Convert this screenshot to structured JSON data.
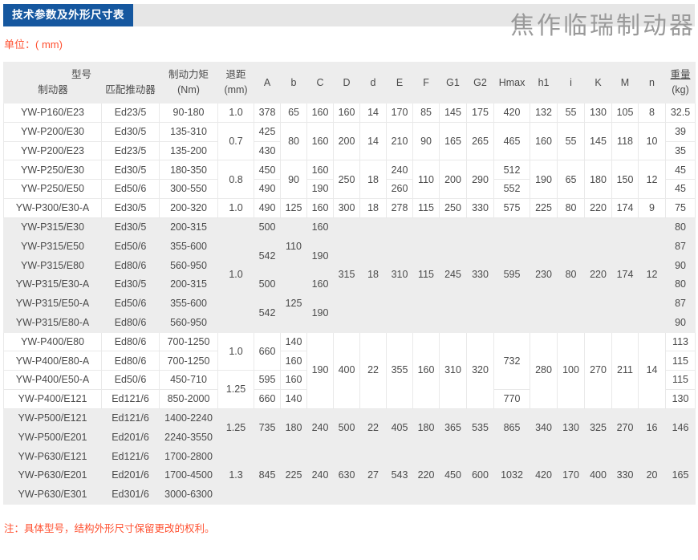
{
  "page": {
    "title": "技术参数及外形尺寸表",
    "watermark": "焦作临瑞制动器",
    "unit_label": "单位：( mm)",
    "note": "注：具体型号，结构外形尺寸保留更改的权利。"
  },
  "colors": {
    "title_bg": "#15579f",
    "strip_gray": "#e6e6e6",
    "accent_red": "#ff5030",
    "stripe_bg": "#ededed",
    "border_color": "#e9e9e9",
    "text_color": "#4a4a4a",
    "watermark_color": "#9a9a9a"
  },
  "table": {
    "header": {
      "model_group": "型号",
      "brake": "制动器",
      "thruster": "匹配推动器",
      "torque_l1": "制动力矩",
      "torque_l2": "(Nm)",
      "gap_l1": "退距",
      "gap_l2": "(mm)",
      "dims": [
        "A",
        "b",
        "C",
        "D",
        "d",
        "E",
        "F",
        "G1",
        "G2",
        "Hmax",
        "h1",
        "i",
        "K",
        "M",
        "n"
      ],
      "weight_l1": "重量",
      "weight_l2": "(kg)"
    },
    "rows": [
      {
        "shade": false,
        "cells": [
          {
            "v": "YW-P160/E23"
          },
          {
            "v": "Ed23/5"
          },
          {
            "v": "90-180"
          },
          {
            "v": "1.0"
          },
          {
            "v": "378"
          },
          {
            "v": "65"
          },
          {
            "v": "160"
          },
          {
            "v": "160"
          },
          {
            "v": "14"
          },
          {
            "v": "170"
          },
          {
            "v": "85"
          },
          {
            "v": "145"
          },
          {
            "v": "175"
          },
          {
            "v": "420"
          },
          {
            "v": "132"
          },
          {
            "v": "55"
          },
          {
            "v": "130"
          },
          {
            "v": "105"
          },
          {
            "v": "8"
          },
          {
            "v": "32.5"
          }
        ]
      },
      {
        "shade": false,
        "cells": [
          {
            "v": "YW-P200/E30"
          },
          {
            "v": "Ed30/5"
          },
          {
            "v": "135-310"
          },
          {
            "v": "0.7",
            "rs": 2
          },
          {
            "v": "425"
          },
          {
            "v": "80",
            "rs": 2
          },
          {
            "v": "160",
            "rs": 2
          },
          {
            "v": "200",
            "rs": 2
          },
          {
            "v": "14",
            "rs": 2
          },
          {
            "v": "210",
            "rs": 2
          },
          {
            "v": "90",
            "rs": 2
          },
          {
            "v": "165",
            "rs": 2
          },
          {
            "v": "265",
            "rs": 2
          },
          {
            "v": "465",
            "rs": 2
          },
          {
            "v": "160",
            "rs": 2
          },
          {
            "v": "55",
            "rs": 2
          },
          {
            "v": "145",
            "rs": 2
          },
          {
            "v": "118",
            "rs": 2
          },
          {
            "v": "10",
            "rs": 2
          },
          {
            "v": "39"
          }
        ]
      },
      {
        "shade": false,
        "cells": [
          {
            "v": "YW-P200/E23"
          },
          {
            "v": "Ed23/5"
          },
          {
            "v": "135-200"
          },
          {
            "v": "430"
          },
          {
            "v": "35"
          }
        ]
      },
      {
        "shade": false,
        "cells": [
          {
            "v": "YW-P250/E30"
          },
          {
            "v": "Ed30/5"
          },
          {
            "v": "180-350"
          },
          {
            "v": "0.8",
            "rs": 2
          },
          {
            "v": "450"
          },
          {
            "v": "90",
            "rs": 2
          },
          {
            "v": "160"
          },
          {
            "v": "250",
            "rs": 2
          },
          {
            "v": "18",
            "rs": 2
          },
          {
            "v": "240"
          },
          {
            "v": "110",
            "rs": 2
          },
          {
            "v": "200",
            "rs": 2
          },
          {
            "v": "290",
            "rs": 2
          },
          {
            "v": "512"
          },
          {
            "v": "190",
            "rs": 2
          },
          {
            "v": "65",
            "rs": 2
          },
          {
            "v": "180",
            "rs": 2
          },
          {
            "v": "150",
            "rs": 2
          },
          {
            "v": "12",
            "rs": 2
          },
          {
            "v": "45"
          }
        ]
      },
      {
        "shade": false,
        "cells": [
          {
            "v": "YW-P250/E50"
          },
          {
            "v": "Ed50/6"
          },
          {
            "v": "300-550"
          },
          {
            "v": "490"
          },
          {
            "v": "190"
          },
          {
            "v": "260"
          },
          {
            "v": "552"
          },
          {
            "v": "45"
          }
        ]
      },
      {
        "shade": false,
        "cells": [
          {
            "v": "YW-P300/E30-A"
          },
          {
            "v": "Ed30/5"
          },
          {
            "v": "200-320"
          },
          {
            "v": "1.0"
          },
          {
            "v": "490"
          },
          {
            "v": "125"
          },
          {
            "v": "160"
          },
          {
            "v": "300"
          },
          {
            "v": "18"
          },
          {
            "v": "278"
          },
          {
            "v": "115"
          },
          {
            "v": "250"
          },
          {
            "v": "330"
          },
          {
            "v": "575"
          },
          {
            "v": "225"
          },
          {
            "v": "80"
          },
          {
            "v": "220"
          },
          {
            "v": "174"
          },
          {
            "v": "9"
          },
          {
            "v": "75"
          }
        ]
      },
      {
        "shade": true,
        "cells": [
          {
            "v": "YW-P315/E30"
          },
          {
            "v": "Ed30/5"
          },
          {
            "v": "200-315"
          },
          {
            "v": "1.0",
            "rs": 6
          },
          {
            "v": "500"
          },
          {
            "v": "110",
            "rs": 3
          },
          {
            "v": "160"
          },
          {
            "v": "315",
            "rs": 6
          },
          {
            "v": "18",
            "rs": 6
          },
          {
            "v": "310",
            "rs": 6
          },
          {
            "v": "115",
            "rs": 6
          },
          {
            "v": "245",
            "rs": 6
          },
          {
            "v": "330",
            "rs": 6
          },
          {
            "v": "595",
            "rs": 6
          },
          {
            "v": "230",
            "rs": 6
          },
          {
            "v": "80",
            "rs": 6
          },
          {
            "v": "220",
            "rs": 6
          },
          {
            "v": "174",
            "rs": 6
          },
          {
            "v": "12",
            "rs": 6
          },
          {
            "v": "80"
          }
        ]
      },
      {
        "shade": true,
        "cells": [
          {
            "v": "YW-P315/E50"
          },
          {
            "v": "Ed50/6"
          },
          {
            "v": "355-600"
          },
          {
            "v": "542",
            "rs": 2
          },
          {
            "v": "190",
            "rs": 2
          },
          {
            "v": "87"
          }
        ]
      },
      {
        "shade": true,
        "cells": [
          {
            "v": "YW-P315/E80"
          },
          {
            "v": "Ed80/6"
          },
          {
            "v": "560-950"
          },
          {
            "v": "90"
          }
        ]
      },
      {
        "shade": true,
        "cells": [
          {
            "v": "YW-P315/E30-A"
          },
          {
            "v": "Ed30/5"
          },
          {
            "v": "200-315"
          },
          {
            "v": "500"
          },
          {
            "v": "125",
            "rs": 3
          },
          {
            "v": "160"
          },
          {
            "v": "80"
          }
        ]
      },
      {
        "shade": true,
        "cells": [
          {
            "v": "YW-P315/E50-A"
          },
          {
            "v": "Ed50/6"
          },
          {
            "v": "355-600"
          },
          {
            "v": "542",
            "rs": 2
          },
          {
            "v": "190",
            "rs": 2
          },
          {
            "v": "87"
          }
        ]
      },
      {
        "shade": true,
        "cells": [
          {
            "v": "YW-P315/E80-A"
          },
          {
            "v": "Ed80/6"
          },
          {
            "v": "560-950"
          },
          {
            "v": "90"
          }
        ]
      },
      {
        "shade": false,
        "cells": [
          {
            "v": "YW-P400/E80"
          },
          {
            "v": "Ed80/6"
          },
          {
            "v": "700-1250"
          },
          {
            "v": "1.0",
            "rs": 2
          },
          {
            "v": "660",
            "rs": 2
          },
          {
            "v": "140"
          },
          {
            "v": "190",
            "rs": 4
          },
          {
            "v": "400",
            "rs": 4
          },
          {
            "v": "22",
            "rs": 4
          },
          {
            "v": "355",
            "rs": 4
          },
          {
            "v": "160",
            "rs": 4
          },
          {
            "v": "310",
            "rs": 4
          },
          {
            "v": "320",
            "rs": 4
          },
          {
            "v": "732",
            "rs": 3
          },
          {
            "v": "280",
            "rs": 4
          },
          {
            "v": "100",
            "rs": 4
          },
          {
            "v": "270",
            "rs": 4
          },
          {
            "v": "211",
            "rs": 4
          },
          {
            "v": "14",
            "rs": 4
          },
          {
            "v": "113"
          }
        ]
      },
      {
        "shade": false,
        "cells": [
          {
            "v": "YW-P400/E80-A"
          },
          {
            "v": "Ed80/6"
          },
          {
            "v": "700-1250"
          },
          {
            "v": "160"
          },
          {
            "v": "115"
          }
        ]
      },
      {
        "shade": false,
        "cells": [
          {
            "v": "YW-P400/E50-A"
          },
          {
            "v": "Ed50/6"
          },
          {
            "v": "450-710"
          },
          {
            "v": "1.25",
            "rs": 2
          },
          {
            "v": "595"
          },
          {
            "v": "160"
          },
          {
            "v": "115"
          }
        ]
      },
      {
        "shade": false,
        "cells": [
          {
            "v": "YW-P400/E121"
          },
          {
            "v": "Ed121/6"
          },
          {
            "v": "850-2000"
          },
          {
            "v": "660"
          },
          {
            "v": "140"
          },
          {
            "v": "770"
          },
          {
            "v": "130"
          }
        ]
      },
      {
        "shade": true,
        "cells": [
          {
            "v": "YW-P500/E121"
          },
          {
            "v": "Ed121/6"
          },
          {
            "v": "1400-2240"
          },
          {
            "v": "1.25",
            "rs": 2
          },
          {
            "v": "735",
            "rs": 2
          },
          {
            "v": "180",
            "rs": 2
          },
          {
            "v": "240",
            "rs": 2
          },
          {
            "v": "500",
            "rs": 2
          },
          {
            "v": "22",
            "rs": 2
          },
          {
            "v": "405",
            "rs": 2
          },
          {
            "v": "180",
            "rs": 2
          },
          {
            "v": "365",
            "rs": 2
          },
          {
            "v": "535",
            "rs": 2
          },
          {
            "v": "865",
            "rs": 2
          },
          {
            "v": "340",
            "rs": 2
          },
          {
            "v": "130",
            "rs": 2
          },
          {
            "v": "325",
            "rs": 2
          },
          {
            "v": "270",
            "rs": 2
          },
          {
            "v": "16",
            "rs": 2
          },
          {
            "v": "146",
            "rs": 2
          }
        ]
      },
      {
        "shade": true,
        "cells": [
          {
            "v": "YW-P500/E201"
          },
          {
            "v": "Ed201/6"
          },
          {
            "v": "2240-3550"
          }
        ]
      },
      {
        "shade": true,
        "cells": [
          {
            "v": "YW-P630/E121"
          },
          {
            "v": "Ed121/6"
          },
          {
            "v": "1700-2800"
          },
          {
            "v": "1.3",
            "rs": 3
          },
          {
            "v": "845",
            "rs": 3
          },
          {
            "v": "225",
            "rs": 3
          },
          {
            "v": "240",
            "rs": 3
          },
          {
            "v": "630",
            "rs": 3
          },
          {
            "v": "27",
            "rs": 3
          },
          {
            "v": "543",
            "rs": 3
          },
          {
            "v": "220",
            "rs": 3
          },
          {
            "v": "450",
            "rs": 3
          },
          {
            "v": "600",
            "rs": 3
          },
          {
            "v": "1032",
            "rs": 3
          },
          {
            "v": "420",
            "rs": 3
          },
          {
            "v": "170",
            "rs": 3
          },
          {
            "v": "400",
            "rs": 3
          },
          {
            "v": "330",
            "rs": 3
          },
          {
            "v": "20",
            "rs": 3
          },
          {
            "v": "165",
            "rs": 3
          }
        ]
      },
      {
        "shade": true,
        "cells": [
          {
            "v": "YW-P630/E201"
          },
          {
            "v": "Ed201/6"
          },
          {
            "v": "1700-4500"
          }
        ]
      },
      {
        "shade": true,
        "cells": [
          {
            "v": "YW-P630/E301"
          },
          {
            "v": "Ed301/6"
          },
          {
            "v": "3000-6300"
          }
        ]
      }
    ]
  }
}
